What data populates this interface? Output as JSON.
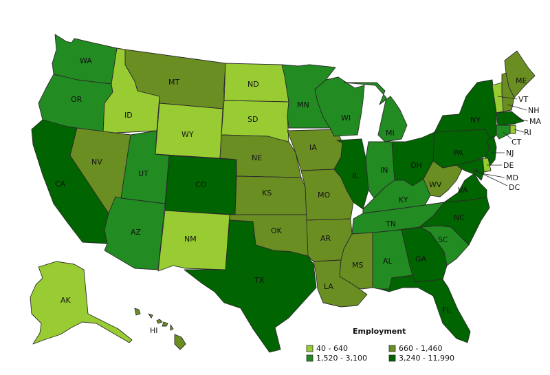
{
  "legend": {
    "title": "Employment",
    "items": [
      {
        "label": "40 - 640",
        "color": "#99cc33"
      },
      {
        "label": "660 - 1,460",
        "color": "#6b8e23"
      },
      {
        "label": "1,520 - 3,100",
        "color": "#228b22"
      },
      {
        "label": "3,240 - 11,990",
        "color": "#006400"
      }
    ]
  },
  "states": [
    {
      "abbr": "WA",
      "tier": 2
    },
    {
      "abbr": "OR",
      "tier": 2
    },
    {
      "abbr": "CA",
      "tier": 3
    },
    {
      "abbr": "ID",
      "tier": 0
    },
    {
      "abbr": "NV",
      "tier": 1
    },
    {
      "abbr": "MT",
      "tier": 1
    },
    {
      "abbr": "WY",
      "tier": 0
    },
    {
      "abbr": "UT",
      "tier": 2
    },
    {
      "abbr": "AZ",
      "tier": 2
    },
    {
      "abbr": "CO",
      "tier": 3
    },
    {
      "abbr": "NM",
      "tier": 0
    },
    {
      "abbr": "ND",
      "tier": 0
    },
    {
      "abbr": "SD",
      "tier": 0
    },
    {
      "abbr": "NE",
      "tier": 1
    },
    {
      "abbr": "KS",
      "tier": 1
    },
    {
      "abbr": "OK",
      "tier": 1
    },
    {
      "abbr": "TX",
      "tier": 3
    },
    {
      "abbr": "MN",
      "tier": 2
    },
    {
      "abbr": "IA",
      "tier": 1
    },
    {
      "abbr": "MO",
      "tier": 1
    },
    {
      "abbr": "AR",
      "tier": 1
    },
    {
      "abbr": "LA",
      "tier": 1
    },
    {
      "abbr": "WI",
      "tier": 2
    },
    {
      "abbr": "IL",
      "tier": 3
    },
    {
      "abbr": "MI",
      "tier": 2
    },
    {
      "abbr": "IN",
      "tier": 2
    },
    {
      "abbr": "OH",
      "tier": 3
    },
    {
      "abbr": "KY",
      "tier": 2
    },
    {
      "abbr": "TN",
      "tier": 2
    },
    {
      "abbr": "MS",
      "tier": 1
    },
    {
      "abbr": "AL",
      "tier": 2
    },
    {
      "abbr": "GA",
      "tier": 3
    },
    {
      "abbr": "FL",
      "tier": 3
    },
    {
      "abbr": "SC",
      "tier": 2
    },
    {
      "abbr": "NC",
      "tier": 3
    },
    {
      "abbr": "VA",
      "tier": 3
    },
    {
      "abbr": "WV",
      "tier": 1
    },
    {
      "abbr": "PA",
      "tier": 3
    },
    {
      "abbr": "NY",
      "tier": 3
    },
    {
      "abbr": "ME",
      "tier": 1
    },
    {
      "abbr": "NH",
      "tier": 1
    },
    {
      "abbr": "VT",
      "tier": 0
    },
    {
      "abbr": "MA",
      "tier": 3
    },
    {
      "abbr": "RI",
      "tier": 0
    },
    {
      "abbr": "CT",
      "tier": 2
    },
    {
      "abbr": "NJ",
      "tier": 3
    },
    {
      "abbr": "DE",
      "tier": 0
    },
    {
      "abbr": "MD",
      "tier": 3
    },
    {
      "abbr": "DC",
      "tier": 3
    },
    {
      "abbr": "AK",
      "tier": 0
    },
    {
      "abbr": "HI",
      "tier": 1
    }
  ]
}
